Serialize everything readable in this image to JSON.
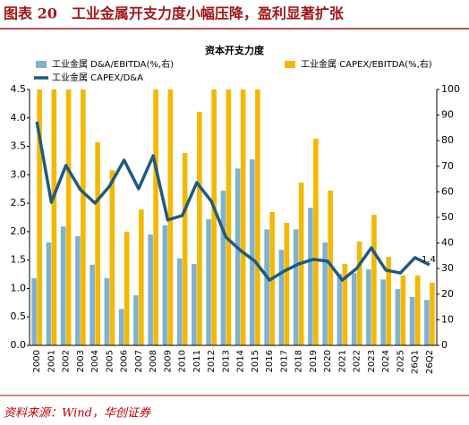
{
  "header": {
    "title": "图表 20　工业金属开支力度小幅压降，盈利显著扩张",
    "source": "资料来源：Wind，华创证券"
  },
  "chart_data": {
    "type": "combo",
    "title": "资本开支力度",
    "categories": [
      "2000",
      "2001",
      "2002",
      "2003",
      "2004",
      "2005",
      "2006",
      "2007",
      "2008",
      "2009",
      "2010",
      "2011",
      "2012",
      "2013",
      "2014",
      "2015",
      "2016",
      "2017",
      "2018",
      "2019",
      "2020",
      "2021",
      "2022",
      "2023",
      "2024",
      "2025",
      "26Q1",
      "26Q2"
    ],
    "series": [
      {
        "name": "工业金属 D&A/EBITDA(%,右)",
        "type": "bar",
        "color": "#7fb2cf",
        "values": [
          1.18,
          1.81,
          2.09,
          1.92,
          1.42,
          1.18,
          0.64,
          0.88,
          1.95,
          2.11,
          1.53,
          1.43,
          2.22,
          2.72,
          3.11,
          3.27,
          2.04,
          1.68,
          2.04,
          2.42,
          1.81,
          1.26,
          1.27,
          1.34,
          1.16,
          0.99,
          0.85,
          0.8
        ]
      },
      {
        "name": "工业金属 CAPEX/EBITDA(%,右)",
        "type": "bar",
        "axis": "y2",
        "color": "#f5b800",
        "values": [
          100,
          100,
          100,
          100,
          79.4,
          68.5,
          44.4,
          53.1,
          100,
          100,
          75.2,
          91.3,
          100,
          100,
          100,
          100,
          52.1,
          47.9,
          63.6,
          80.8,
          60.5,
          31.8,
          40.6,
          51.0,
          34.6,
          27.3,
          27.3,
          24.5
        ]
      },
      {
        "name": "工业金属 CAPEX/D&A",
        "type": "line",
        "axis": "y2",
        "color": "#1f5a80",
        "values": [
          87.4,
          55.9,
          70.3,
          60.8,
          55.6,
          62.2,
          72.4,
          61.2,
          74.1,
          49.0,
          50.7,
          63.6,
          56.3,
          42.3,
          37.1,
          32.9,
          25.5,
          29.0,
          31.8,
          33.6,
          32.9,
          25.5,
          30.1,
          38.1,
          29.4,
          28.3,
          34.3,
          31.5
        ]
      }
    ],
    "annotations": [
      "1.4"
    ],
    "ylim": [
      0,
      4.5
    ],
    "yticks": [
      {
        "value": 0,
        "label": "0.0"
      },
      0.5,
      {
        "value": 1,
        "label": "1.0"
      },
      1.5,
      {
        "value": 2,
        "label": "2.0"
      },
      2.5,
      {
        "value": 3,
        "label": "3.0"
      },
      3.5,
      {
        "value": 4,
        "label": "4.0"
      },
      4.5
    ],
    "y2lim": [
      0,
      100
    ],
    "y2ticks": [
      0,
      10,
      20,
      30,
      40,
      50,
      60,
      70,
      80,
      90,
      100
    ]
  }
}
